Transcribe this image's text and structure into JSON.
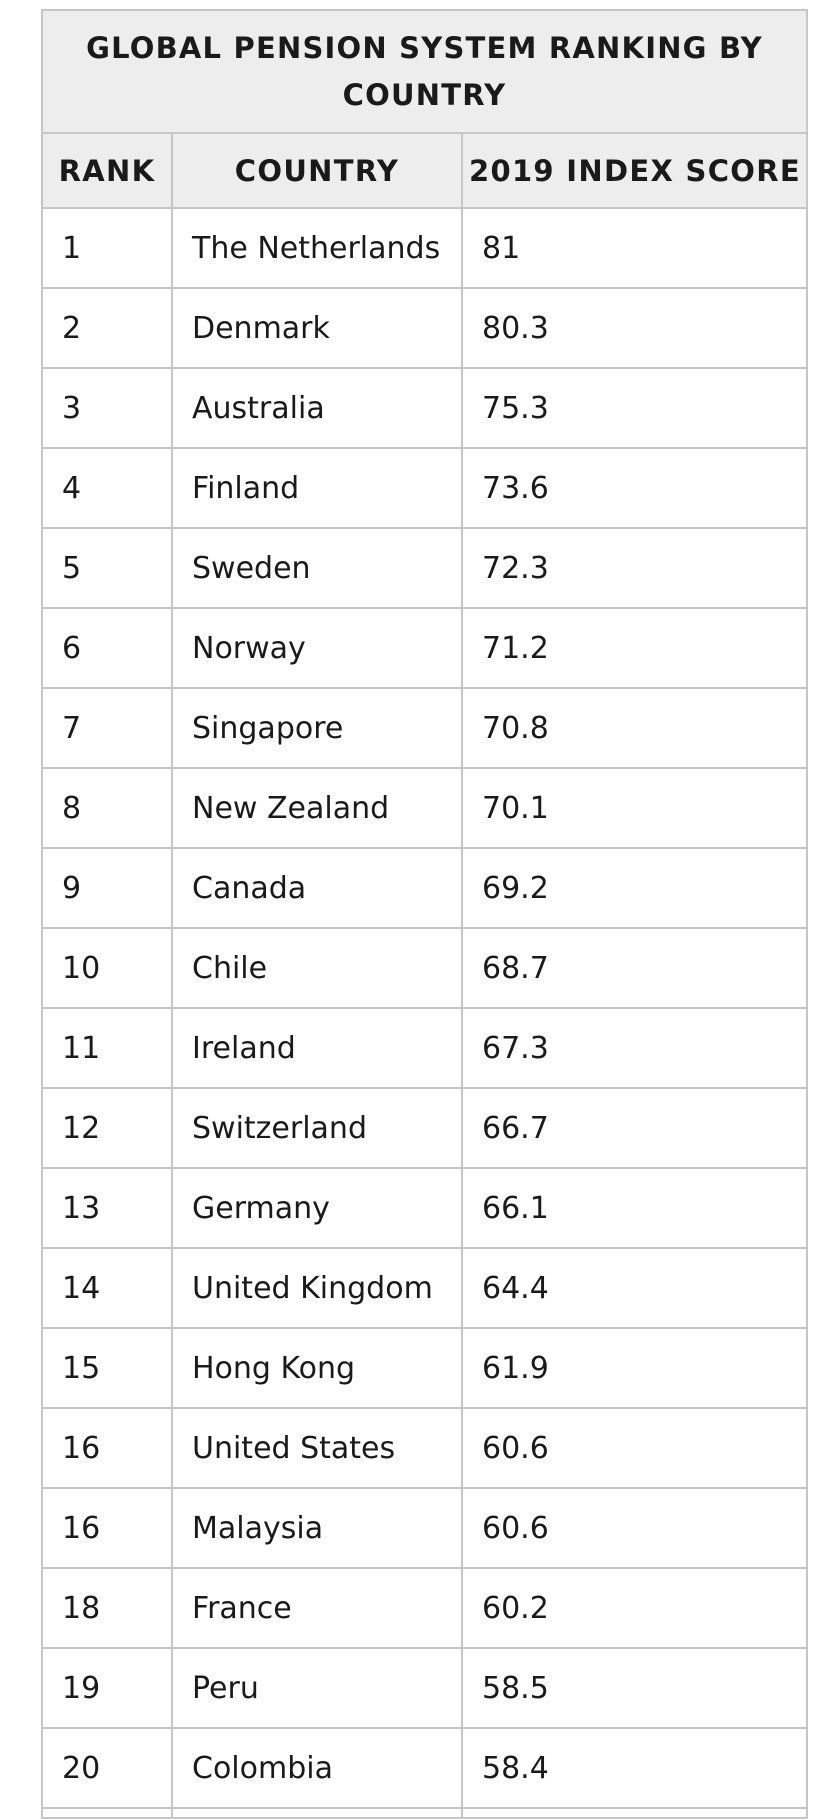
{
  "chart_data": {
    "type": "table",
    "title": "GLOBAL PENSION SYSTEM RANKING BY COUNTRY",
    "columns": [
      "RANK",
      "COUNTRY",
      "2019 INDEX SCORE"
    ],
    "rows": [
      {
        "rank": "1",
        "country": "The Netherlands",
        "score": "81"
      },
      {
        "rank": "2",
        "country": "Denmark",
        "score": "80.3"
      },
      {
        "rank": "3",
        "country": "Australia",
        "score": "75.3"
      },
      {
        "rank": "4",
        "country": "Finland",
        "score": "73.6"
      },
      {
        "rank": "5",
        "country": "Sweden",
        "score": "72.3"
      },
      {
        "rank": "6",
        "country": "Norway",
        "score": "71.2"
      },
      {
        "rank": "7",
        "country": "Singapore",
        "score": "70.8"
      },
      {
        "rank": "8",
        "country": "New Zealand",
        "score": "70.1"
      },
      {
        "rank": "9",
        "country": "Canada",
        "score": "69.2"
      },
      {
        "rank": "10",
        "country": "Chile",
        "score": "68.7"
      },
      {
        "rank": "11",
        "country": "Ireland",
        "score": "67.3"
      },
      {
        "rank": "12",
        "country": "Switzerland",
        "score": "66.7"
      },
      {
        "rank": "13",
        "country": "Germany",
        "score": "66.1"
      },
      {
        "rank": "14",
        "country": "United Kingdom",
        "score": "64.4"
      },
      {
        "rank": "15",
        "country": "Hong Kong",
        "score": "61.9"
      },
      {
        "rank": "16",
        "country": "United States",
        "score": "60.6"
      },
      {
        "rank": "16",
        "country": "Malaysia",
        "score": "60.6"
      },
      {
        "rank": "18",
        "country": "France",
        "score": "60.2"
      },
      {
        "rank": "19",
        "country": "Peru",
        "score": "58.5"
      },
      {
        "rank": "20",
        "country": "Colombia",
        "score": "58.4"
      }
    ],
    "colors": {
      "header_background": "#ededed",
      "border": "#c6c6c6",
      "text": "#1a1a1a"
    }
  }
}
